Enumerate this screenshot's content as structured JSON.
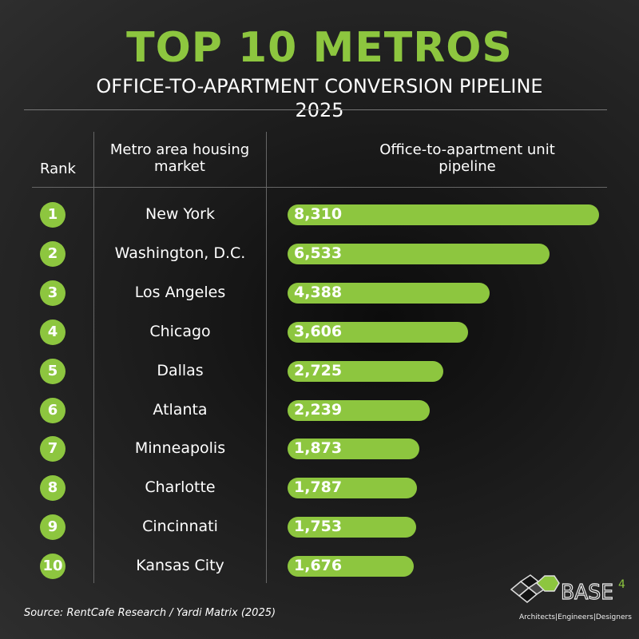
{
  "chart_data": {
    "type": "bar",
    "title": "TOP 10 METROS",
    "subtitle": "OFFICE-TO-APARTMENT CONVERSION PIPELINE",
    "year": "2025",
    "columns": {
      "rank": "Rank",
      "metro": "Metro area housing market",
      "value": "Office-to-apartment unit pipeline"
    },
    "ranks": [
      "1",
      "2",
      "3",
      "4",
      "5",
      "6",
      "7",
      "8",
      "9",
      "10"
    ],
    "categories": [
      "New York",
      "Washington, D.C.",
      "Los Angeles",
      "Chicago",
      "Dallas",
      "Atlanta",
      "Minneapolis",
      "Charlotte",
      "Cincinnati",
      "Kansas City"
    ],
    "values": [
      8310,
      6533,
      4388,
      3606,
      2725,
      2239,
      1873,
      1787,
      1753,
      1676
    ],
    "labels": [
      "8,310",
      "6,533",
      "4,388",
      "3,606",
      "2,725",
      "2,239",
      "1,873",
      "1,787",
      "1,753",
      "1,676"
    ],
    "orientation": "horizontal",
    "bar_color": "#8dc63f"
  },
  "source": "Source: RentCafe Research / Yardi Matrix (2025)",
  "logo": {
    "text": "BASE4",
    "tagline": "Architects|Engineers|Designers"
  }
}
